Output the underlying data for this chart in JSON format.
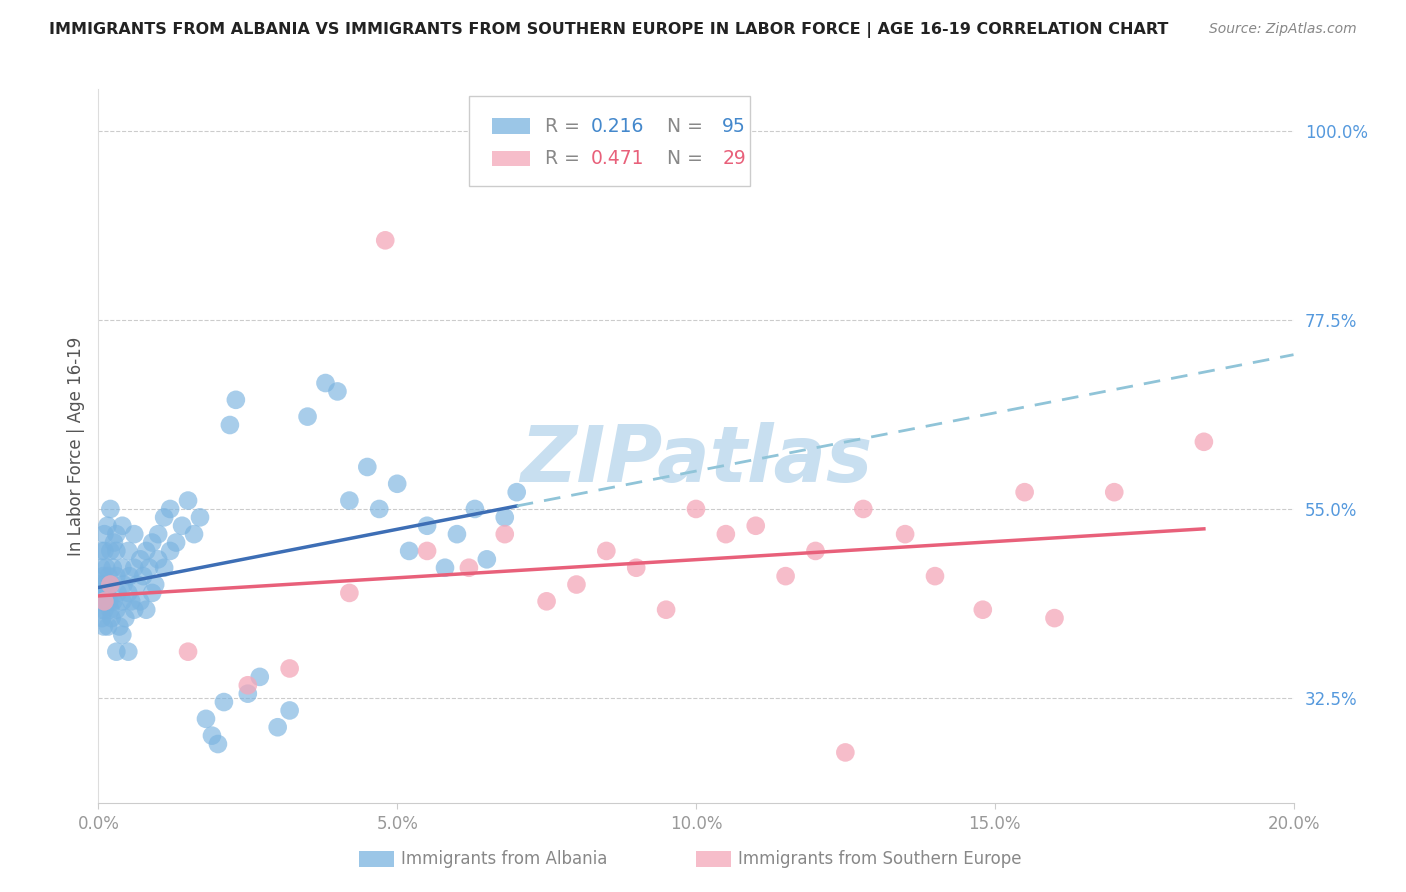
{
  "title": "IMMIGRANTS FROM ALBANIA VS IMMIGRANTS FROM SOUTHERN EUROPE IN LABOR FORCE | AGE 16-19 CORRELATION CHART",
  "source": "Source: ZipAtlas.com",
  "ylabel": "In Labor Force | Age 16-19",
  "xlim": [
    0.0,
    0.2
  ],
  "ylim": [
    0.2,
    1.05
  ],
  "yticks": [
    0.325,
    0.55,
    0.775,
    1.0
  ],
  "ytick_labels": [
    "32.5%",
    "55.0%",
    "77.5%",
    "100.0%"
  ],
  "xticks": [
    0.0,
    0.05,
    0.1,
    0.15,
    0.2
  ],
  "xtick_labels": [
    "0.0%",
    "5.0%",
    "10.0%",
    "15.0%",
    "20.0%"
  ],
  "blue_color": "#7ab3e0",
  "pink_color": "#f4a7b9",
  "blue_line_color": "#3d6eb5",
  "pink_line_color": "#e8607a",
  "dashed_line_color": "#90c4d8",
  "label_blue": "Immigrants from Albania",
  "label_pink": "Immigrants from Southern Europe",
  "watermark": "ZIPatlas",
  "watermark_color": "#c8dff0",
  "background_color": "#ffffff",
  "albania_x": [
    0.0002,
    0.0003,
    0.0004,
    0.0005,
    0.0005,
    0.0006,
    0.0007,
    0.0008,
    0.0009,
    0.001,
    0.001,
    0.001,
    0.001,
    0.0012,
    0.0013,
    0.0014,
    0.0015,
    0.0016,
    0.0017,
    0.0018,
    0.002,
    0.002,
    0.002,
    0.002,
    0.0022,
    0.0024,
    0.0025,
    0.0026,
    0.003,
    0.003,
    0.003,
    0.003,
    0.003,
    0.0032,
    0.0035,
    0.004,
    0.004,
    0.004,
    0.004,
    0.0042,
    0.0045,
    0.005,
    0.005,
    0.005,
    0.0052,
    0.0055,
    0.006,
    0.006,
    0.006,
    0.0065,
    0.007,
    0.007,
    0.0075,
    0.008,
    0.008,
    0.0085,
    0.009,
    0.009,
    0.0095,
    0.01,
    0.01,
    0.011,
    0.011,
    0.012,
    0.012,
    0.013,
    0.014,
    0.015,
    0.016,
    0.017,
    0.018,
    0.019,
    0.02,
    0.021,
    0.022,
    0.023,
    0.025,
    0.027,
    0.03,
    0.032,
    0.035,
    0.038,
    0.04,
    0.042,
    0.045,
    0.047,
    0.05,
    0.052,
    0.055,
    0.058,
    0.06,
    0.063,
    0.065,
    0.068,
    0.07
  ],
  "albania_y": [
    0.44,
    0.46,
    0.43,
    0.48,
    0.5,
    0.42,
    0.45,
    0.47,
    0.41,
    0.43,
    0.5,
    0.46,
    0.52,
    0.44,
    0.48,
    0.45,
    0.53,
    0.41,
    0.47,
    0.44,
    0.43,
    0.46,
    0.5,
    0.55,
    0.42,
    0.48,
    0.44,
    0.51,
    0.43,
    0.47,
    0.5,
    0.38,
    0.52,
    0.45,
    0.41,
    0.44,
    0.48,
    0.53,
    0.4,
    0.46,
    0.42,
    0.45,
    0.5,
    0.38,
    0.47,
    0.44,
    0.48,
    0.52,
    0.43,
    0.46,
    0.49,
    0.44,
    0.47,
    0.5,
    0.43,
    0.48,
    0.45,
    0.51,
    0.46,
    0.49,
    0.52,
    0.48,
    0.54,
    0.5,
    0.55,
    0.51,
    0.53,
    0.56,
    0.52,
    0.54,
    0.3,
    0.28,
    0.27,
    0.32,
    0.65,
    0.68,
    0.33,
    0.35,
    0.29,
    0.31,
    0.66,
    0.7,
    0.69,
    0.56,
    0.6,
    0.55,
    0.58,
    0.5,
    0.53,
    0.48,
    0.52,
    0.55,
    0.49,
    0.54,
    0.57
  ],
  "southern_x": [
    0.001,
    0.002,
    0.015,
    0.025,
    0.032,
    0.042,
    0.048,
    0.055,
    0.062,
    0.068,
    0.075,
    0.08,
    0.085,
    0.09,
    0.095,
    0.1,
    0.105,
    0.11,
    0.115,
    0.12,
    0.125,
    0.128,
    0.135,
    0.14,
    0.148,
    0.155,
    0.16,
    0.17,
    0.185
  ],
  "southern_y": [
    0.44,
    0.46,
    0.38,
    0.34,
    0.36,
    0.45,
    0.87,
    0.5,
    0.48,
    0.52,
    0.44,
    0.46,
    0.5,
    0.48,
    0.43,
    0.55,
    0.52,
    0.53,
    0.47,
    0.5,
    0.26,
    0.55,
    0.52,
    0.47,
    0.43,
    0.57,
    0.42,
    0.57,
    0.63
  ]
}
